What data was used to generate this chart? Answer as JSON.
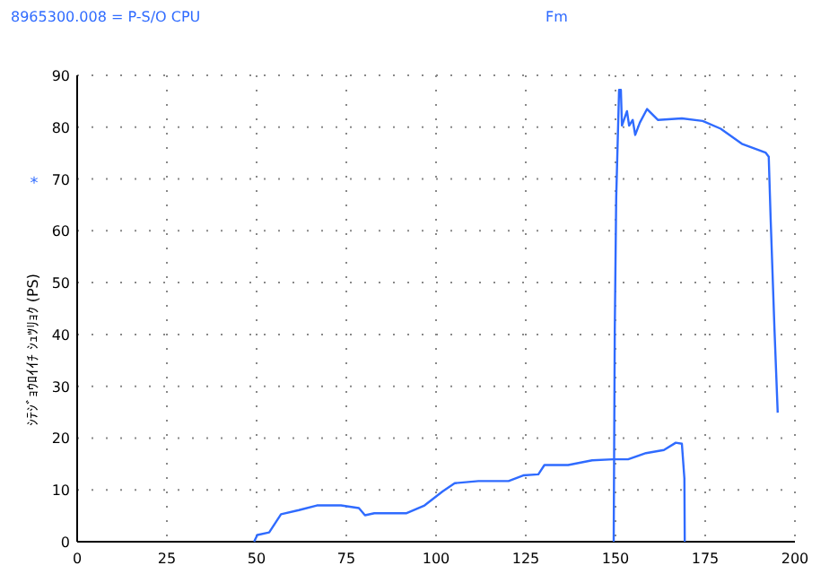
{
  "chart_data": {
    "type": "line",
    "title": "8965300.008 = P-S/O CPU",
    "ylabel": "ｼﾃｼﾞｮｳﾛｲｲﾁ ｼｭﾂﾘｮｸ (PS)",
    "annotations": [
      "Fm",
      "*"
    ],
    "xlim": [
      0,
      200
    ],
    "xticks": [
      0,
      25,
      50,
      75,
      100,
      125,
      150,
      175,
      200
    ],
    "ylim": [
      0,
      90
    ],
    "yticks": [
      0,
      10,
      20,
      30,
      40,
      50,
      60,
      70,
      80,
      90
    ],
    "grid": true,
    "series": [
      {
        "color": "#2f6bff",
        "x": [
          49.3,
          50.2,
          53.5,
          56.8,
          61.8,
          66.8,
          73.5,
          78.5,
          80.2,
          82.8,
          91.8,
          96.8,
          101.8,
          105.2,
          111.8,
          120.2,
          124.3,
          128.5,
          130.2,
          136.8,
          143.5,
          149.3,
          153.5,
          158.5,
          163.5,
          166.8,
          168.5,
          169.2,
          169.3
        ],
        "values": [
          0,
          1.3,
          1.8,
          5.3,
          6.1,
          7.0,
          7.0,
          6.5,
          5.1,
          5.5,
          5.5,
          7.0,
          9.7,
          11.3,
          11.7,
          11.7,
          12.8,
          13.0,
          14.8,
          14.8,
          15.7,
          15.9,
          15.9,
          17.1,
          17.7,
          19.1,
          18.9,
          12.2,
          0
        ]
      },
      {
        "color": "#2f6bff",
        "x": [
          149.5,
          149.8,
          150.2,
          151,
          151.5,
          151.8,
          153.2,
          153.8,
          154.8,
          155.5,
          156.8,
          158.8,
          161.8,
          168.5,
          174.3,
          179.3,
          185.2,
          191.8,
          192.7,
          193.2,
          194.3,
          195.2
        ],
        "values": [
          0,
          41,
          66.4,
          87.2,
          87.2,
          80.3,
          83.1,
          80.3,
          81.4,
          78.5,
          80.9,
          83.5,
          81.4,
          81.7,
          81.2,
          79.7,
          76.8,
          75.1,
          74.3,
          63,
          41,
          24.9
        ]
      }
    ]
  }
}
